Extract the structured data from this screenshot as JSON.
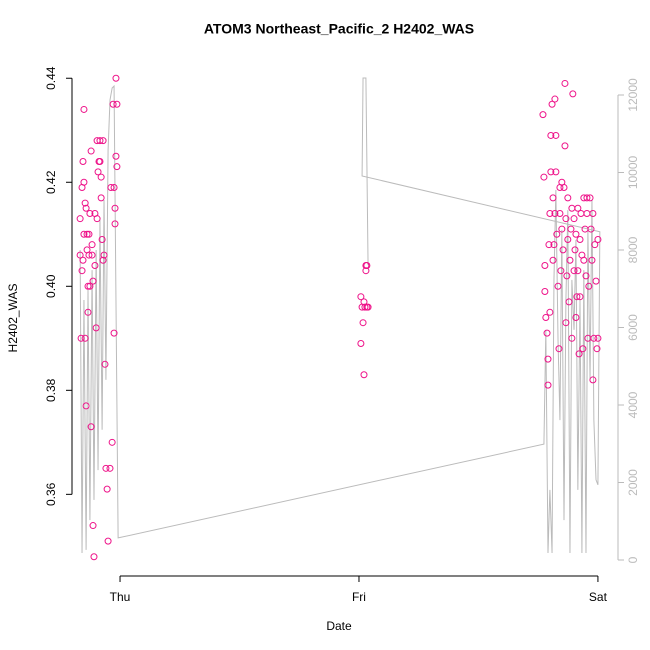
{
  "chart_data": {
    "type": "scatter",
    "title": "ATOM3 Northeast_Pacific_2 H2402_WAS",
    "x_label": "Date",
    "y_label": "H2402_WAS",
    "xlim": [
      -0.201,
      2.084
    ],
    "xticks": [
      {
        "value": 0,
        "label": "Thu"
      },
      {
        "value": 1,
        "label": "Fri"
      },
      {
        "value": 2,
        "label": "Sat"
      }
    ],
    "ylim": [
      0.3443,
      0.4437
    ],
    "yticks": [
      0.36,
      0.38,
      {
        "value": 0.4,
        "label": "0.40"
      },
      0.42,
      0.44
    ],
    "y2lim": [
      -413,
      12929
    ],
    "y2ticks": [
      0,
      2000,
      4000,
      6000,
      8000,
      10000,
      12000
    ],
    "y2_color": "#bbbbbb",
    "series": [
      {
        "color": "#ee1289",
        "marker": "circle",
        "x": [
          -0.167,
          -0.167,
          -0.163,
          -0.159,
          -0.159,
          -0.155,
          -0.155,
          -0.151,
          -0.151,
          -0.151,
          -0.146,
          -0.146,
          -0.142,
          -0.142,
          -0.138,
          -0.138,
          -0.134,
          -0.134,
          -0.13,
          -0.13,
          -0.126,
          -0.126,
          -0.121,
          -0.121,
          -0.117,
          -0.117,
          -0.113,
          -0.113,
          -0.109,
          -0.105,
          -0.105,
          -0.1,
          -0.096,
          -0.096,
          -0.092,
          -0.088,
          -0.084,
          -0.084,
          -0.079,
          -0.079,
          -0.075,
          -0.071,
          -0.071,
          -0.067,
          -0.063,
          -0.059,
          -0.054,
          -0.05,
          -0.042,
          -0.038,
          -0.033,
          -0.029,
          -0.025,
          -0.025,
          -0.021,
          -0.021,
          -0.017,
          -0.017,
          -0.013,
          -0.013,
          1.008,
          1.008,
          1.013,
          1.017,
          1.021,
          1.021,
          1.025,
          1.029,
          1.029,
          1.033,
          1.038,
          1.033,
          1.77,
          1.774,
          1.778,
          1.778,
          1.782,
          1.787,
          1.791,
          1.791,
          1.795,
          1.799,
          1.799,
          1.803,
          1.803,
          1.808,
          1.812,
          1.812,
          1.816,
          1.82,
          1.82,
          1.824,
          1.824,
          1.828,
          1.833,
          1.837,
          1.841,
          1.841,
          1.845,
          1.849,
          1.849,
          1.854,
          1.858,
          1.862,
          1.862,
          1.866,
          1.866,
          1.87,
          1.874,
          1.874,
          1.879,
          1.883,
          1.887,
          1.891,
          1.891,
          1.895,
          1.9,
          1.9,
          1.904,
          1.908,
          1.908,
          1.912,
          1.916,
          1.916,
          1.921,
          1.925,
          1.925,
          1.929,
          1.933,
          1.937,
          1.941,
          1.941,
          1.946,
          1.95,
          1.954,
          1.954,
          1.958,
          1.962,
          1.967,
          1.971,
          1.975,
          1.979,
          1.979,
          1.983,
          1.987,
          1.992,
          1.996,
          2.0,
          2.0
        ],
        "values": [
          0.406,
          0.413,
          0.39,
          0.419,
          0.403,
          0.424,
          0.405,
          0.42,
          0.434,
          0.41,
          0.416,
          0.39,
          0.415,
          0.377,
          0.41,
          0.407,
          0.395,
          0.4,
          0.41,
          0.406,
          0.414,
          0.4,
          0.426,
          0.373,
          0.408,
          0.406,
          0.401,
          0.354,
          0.348,
          0.414,
          0.404,
          0.392,
          0.428,
          0.413,
          0.422,
          0.424,
          0.428,
          0.424,
          0.417,
          0.421,
          0.409,
          0.428,
          0.405,
          0.406,
          0.385,
          0.365,
          0.361,
          0.351,
          0.365,
          0.419,
          0.37,
          0.435,
          0.391,
          0.419,
          0.415,
          0.412,
          0.425,
          0.44,
          0.435,
          0.423,
          0.389,
          0.398,
          0.396,
          0.393,
          0.397,
          0.383,
          0.396,
          0.403,
          0.404,
          0.396,
          0.396,
          0.404,
          0.433,
          0.421,
          0.399,
          0.404,
          0.394,
          0.391,
          0.381,
          0.386,
          0.408,
          0.395,
          0.414,
          0.429,
          0.422,
          0.435,
          0.405,
          0.417,
          0.408,
          0.436,
          0.414,
          0.429,
          0.422,
          0.41,
          0.4,
          0.388,
          0.414,
          0.419,
          0.403,
          0.42,
          0.411,
          0.407,
          0.419,
          0.427,
          0.439,
          0.393,
          0.413,
          0.402,
          0.409,
          0.417,
          0.397,
          0.405,
          0.411,
          0.39,
          0.415,
          0.437,
          0.403,
          0.413,
          0.407,
          0.394,
          0.41,
          0.398,
          0.403,
          0.415,
          0.387,
          0.409,
          0.398,
          0.414,
          0.406,
          0.388,
          0.417,
          0.405,
          0.411,
          0.402,
          0.414,
          0.417,
          0.39,
          0.4,
          0.417,
          0.411,
          0.405,
          0.382,
          0.414,
          0.39,
          0.408,
          0.401,
          0.388,
          0.39,
          0.409
        ]
      },
      {
        "color": "#bbbbbb",
        "marker": "line",
        "axis": "y2",
        "x": [
          -0.167,
          -0.159,
          -0.151,
          -0.142,
          -0.134,
          -0.126,
          -0.117,
          -0.109,
          -0.1,
          -0.092,
          -0.084,
          -0.075,
          -0.067,
          -0.059,
          -0.05,
          -0.042,
          -0.033,
          -0.025,
          -0.017,
          -0.008,
          1.774,
          1.782,
          1.791,
          1.799,
          1.808,
          1.816,
          1.824,
          1.833,
          1.841,
          1.849,
          1.858,
          1.866,
          1.874,
          1.883,
          1.891,
          1.9,
          1.908,
          1.916,
          1.925,
          1.933,
          1.941,
          1.95,
          1.958,
          1.967,
          1.975,
          1.983,
          1.992,
          2.0,
          2.008,
          1.013,
          1.017,
          1.029,
          1.038
        ],
        "values": [
          8000,
          180,
          6710,
          260,
          6970,
          1030,
          7480,
          1550,
          8000,
          2320,
          8770,
          3360,
          9290,
          4650,
          10580,
          11870,
          12180,
          12230,
          6710,
          570,
          2990,
          5940,
          180,
          1810,
          180,
          7230,
          9550,
          5680,
          3610,
          8520,
          1030,
          6710,
          9030,
          180,
          7230,
          5940,
          8260,
          1810,
          6710,
          180,
          7480,
          180,
          8520,
          4650,
          9290,
          3610,
          2070,
          1940,
          8470,
          9910,
          12440,
          12440,
          7610
        ]
      }
    ]
  }
}
